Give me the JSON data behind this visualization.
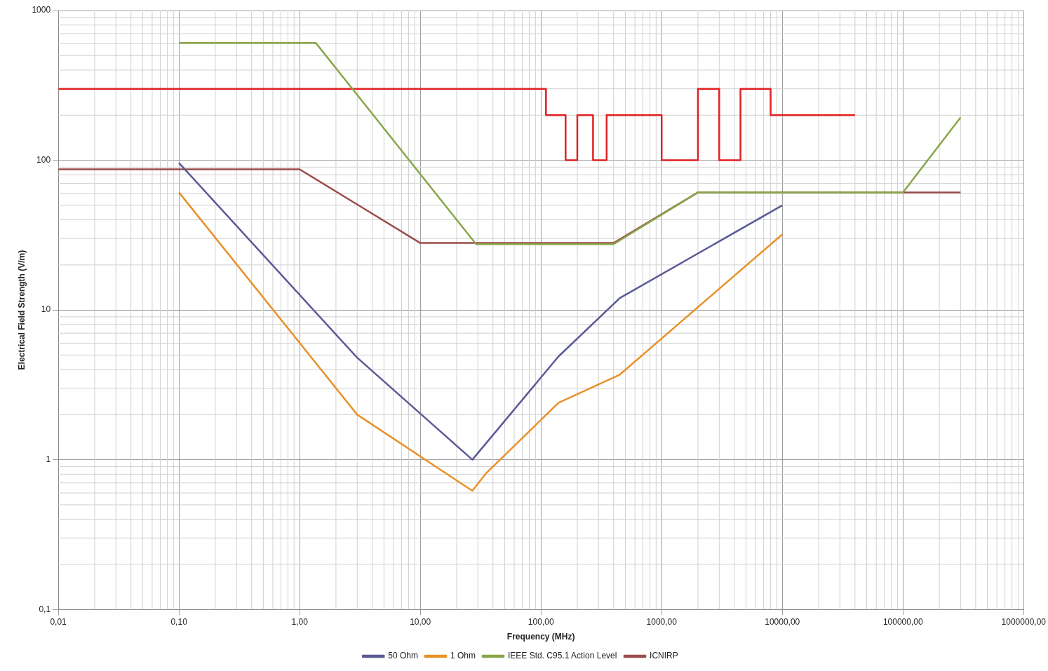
{
  "chart_data": {
    "type": "line",
    "xlabel": "Frequency (MHz)",
    "ylabel": "Electrical Field Strength (V/m)",
    "log": "xy",
    "grid": true,
    "legend": "bottom",
    "marker": "none",
    "line_style": "solid",
    "xlim": [
      0.01,
      1000000
    ],
    "ylim": [
      0.1,
      1000
    ],
    "xticks": [
      {
        "value": 0.01,
        "label": "0,01"
      },
      {
        "value": 0.1,
        "label": "0,10"
      },
      {
        "value": 1,
        "label": "1,00"
      },
      {
        "value": 10,
        "label": "10,00"
      },
      {
        "value": 100,
        "label": "100,00"
      },
      {
        "value": 1000,
        "label": "1000,00"
      },
      {
        "value": 10000,
        "label": "10000,00"
      },
      {
        "value": 100000,
        "label": "100000,00"
      },
      {
        "value": 1000000,
        "label": "1000000,00"
      }
    ],
    "yticks": [
      {
        "value": 0.1,
        "label": "0,1"
      },
      1,
      10,
      100,
      1000
    ],
    "series": [
      {
        "name": "50 Ohm",
        "color": "#5a5a96",
        "x": [
          0.1,
          3,
          27,
          140,
          450,
          10000
        ],
        "values": [
          96,
          4.8,
          1,
          4.9,
          12,
          50
        ]
      },
      {
        "name": "1 Ohm",
        "color": "#e8922a",
        "x": [
          0.1,
          3,
          27,
          35,
          140,
          450,
          10000
        ],
        "values": [
          61,
          2,
          0.62,
          0.81,
          2.4,
          3.7,
          32
        ]
      },
      {
        "name": "IEEE Std. C95.1 Action Level",
        "color": "#8aa64a",
        "x": [
          0.1,
          1.36,
          29,
          400,
          2000,
          100000,
          300000
        ],
        "values": [
          608,
          608,
          27.5,
          27.5,
          61,
          61,
          193
        ]
      },
      {
        "type": "step",
        "color": "#e02020",
        "x": [
          0.01,
          110,
          160,
          200,
          270,
          350,
          1000,
          2000,
          3000,
          4500,
          8000,
          40000
        ],
        "values": [
          300,
          200,
          100,
          200,
          100,
          200,
          100,
          300,
          100,
          300,
          200,
          200
        ]
      },
      {
        "name": "ICNIRP",
        "color": "#9b4b4b",
        "x": [
          0.01,
          1,
          10,
          400,
          2000,
          300000
        ],
        "values": [
          87,
          87,
          28,
          28,
          61,
          61
        ]
      }
    ]
  }
}
